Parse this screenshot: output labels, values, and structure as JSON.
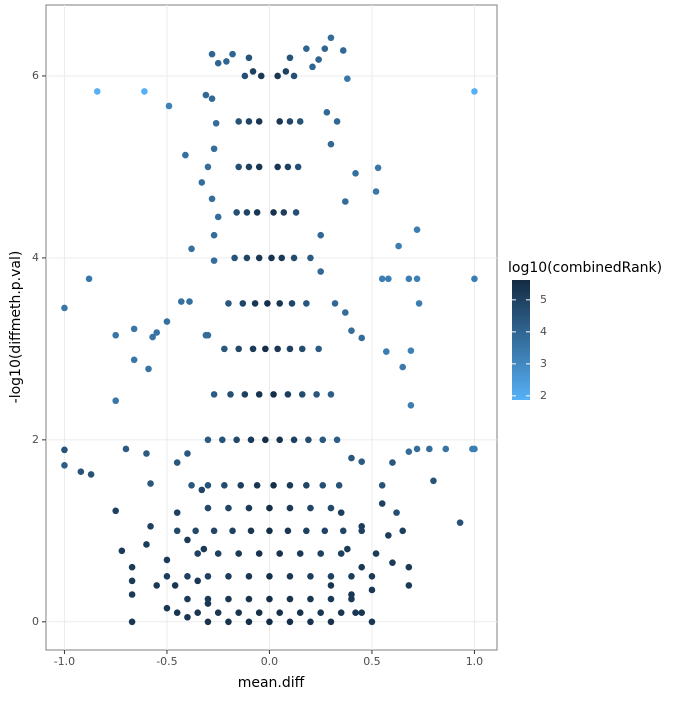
{
  "chart_data": {
    "type": "scatter",
    "x_label": "mean.diff",
    "y_label": "-log10(diffmeth.p.val)",
    "legend_title": "log10(combinedRank)",
    "xlim": [
      -1.09,
      1.11
    ],
    "ylim": [
      -0.31,
      6.78
    ],
    "xticks": [
      {
        "value": -1,
        "label": "-1.0"
      },
      {
        "value": -0.5,
        "label": "-0.5"
      },
      {
        "value": 0,
        "label": "0.0"
      },
      {
        "value": 0.5,
        "label": "0.5"
      },
      {
        "value": 1,
        "label": "1.0"
      }
    ],
    "yticks": [
      0,
      2,
      4,
      6
    ],
    "grid": true,
    "clim": [
      1.87,
      5.62
    ],
    "cticks": [
      2,
      3,
      4,
      5
    ],
    "color_low": "#56B1F7",
    "color_high": "#132B43",
    "x": [
      -0.84,
      -0.61,
      1.0,
      -0.49,
      -1.0,
      -0.88,
      1.0,
      0.55,
      0.58,
      0.68,
      0.72,
      0.73,
      0.63,
      0.72,
      0.53,
      0.52,
      0.38,
      0.3,
      0.27,
      0.69,
      0.57,
      0.65,
      0.69,
      0.68,
      0.72,
      0.78,
      0.86,
      0.99,
      1.0,
      0.93,
      -1.0,
      -1.0,
      -0.92,
      -0.87,
      -0.75,
      -0.75,
      -0.66,
      -0.66,
      -0.59,
      -0.57,
      -0.55,
      -0.5,
      -0.43,
      -0.39,
      -0.31,
      -0.3,
      -0.38,
      -0.27,
      -0.27,
      -0.25,
      -0.28,
      -0.33,
      -0.3,
      -0.27,
      -0.41,
      -0.26,
      -0.28,
      -0.31,
      -0.25,
      -0.28,
      -0.18,
      -0.21,
      0.21,
      0.24,
      0.18,
      0.36,
      0.28,
      0.33,
      0.3,
      0.42,
      0.37,
      0.25,
      0.32,
      0.37,
      0.4,
      0.45,
      0.25,
      -0.7,
      -0.6,
      -0.58,
      -0.45,
      -0.4,
      0.4,
      0.45,
      0.55,
      0.6,
      0.8,
      0.62,
      -0.75,
      -0.72,
      -0.67,
      -0.67,
      -0.67,
      -0.67,
      -0.6,
      -0.58,
      -0.55,
      -0.5,
      -0.5,
      -0.45,
      -0.46,
      -0.4,
      -0.4,
      -0.35,
      -0.33,
      -0.32,
      -0.3,
      0.3,
      0.35,
      0.38,
      0.4,
      0.45,
      0.45,
      0.5,
      0.52,
      0.55,
      0.58,
      0.6,
      0.65,
      0.68,
      0.68,
      0.5,
      0.42,
      -0.12,
      -0.08,
      -0.04,
      0.04,
      0.08,
      0.12,
      0.1,
      -0.1,
      -0.15,
      -0.1,
      -0.05,
      0.05,
      0.1,
      0.15,
      -0.15,
      -0.1,
      -0.05,
      0.04,
      0.09,
      0.14,
      -0.16,
      -0.11,
      -0.06,
      0.02,
      0.07,
      0.13,
      -0.17,
      -0.11,
      -0.05,
      0.01,
      0.06,
      0.12,
      0.2,
      -0.2,
      -0.13,
      -0.07,
      -0.01,
      0.05,
      0.11,
      0.18,
      -0.22,
      -0.15,
      -0.08,
      -0.02,
      0.04,
      0.1,
      0.16,
      0.24,
      -0.27,
      -0.19,
      -0.12,
      -0.05,
      0.02,
      0.09,
      0.16,
      0.23,
      0.3,
      -0.3,
      -0.23,
      -0.16,
      -0.09,
      -0.02,
      0.05,
      0.12,
      0.19,
      0.26,
      0.33,
      -0.38,
      -0.3,
      -0.22,
      -0.14,
      -0.06,
      0.02,
      0.1,
      0.18,
      0.26,
      0.34,
      -0.3,
      -0.2,
      -0.1,
      0,
      0.1,
      0.2,
      0.3,
      -0.45,
      -0.36,
      -0.27,
      -0.18,
      -0.09,
      0.0,
      0.09,
      0.18,
      0.27,
      0.36,
      0.45,
      -0.35,
      -0.25,
      -0.15,
      -0.05,
      0.05,
      0.15,
      0.25,
      0.35,
      -0.5,
      -0.4,
      -0.3,
      -0.2,
      -0.1,
      0.0,
      0.1,
      0.2,
      0.3,
      0.4,
      0.5,
      -0.4,
      -0.3,
      -0.2,
      -0.1,
      0,
      0.1,
      0.2,
      0.3,
      0.4,
      -0.45,
      -0.35,
      -0.25,
      -0.15,
      -0.05,
      0.05,
      0.15,
      0.25,
      0.35,
      0.45,
      -0.3,
      -0.2,
      -0.1,
      0,
      0.1,
      0.2,
      0.3
    ],
    "values": [
      5.83,
      5.83,
      5.83,
      5.67,
      3.45,
      3.77,
      3.77,
      3.77,
      3.77,
      3.77,
      3.77,
      3.5,
      4.13,
      4.31,
      4.99,
      4.73,
      5.97,
      6.42,
      6.3,
      2.98,
      2.97,
      2.8,
      2.38,
      1.87,
      1.9,
      1.9,
      1.9,
      1.9,
      1.9,
      1.09,
      1.89,
      1.72,
      1.65,
      1.62,
      2.43,
      3.15,
      3.22,
      2.88,
      2.78,
      3.13,
      3.18,
      3.3,
      3.52,
      3.52,
      3.15,
      3.15,
      4.1,
      4.25,
      3.97,
      4.45,
      4.65,
      4.83,
      5.0,
      5.2,
      5.13,
      5.48,
      5.75,
      5.79,
      6.14,
      6.24,
      6.24,
      6.16,
      6.1,
      6.18,
      6.3,
      6.28,
      5.6,
      5.5,
      5.25,
      4.93,
      4.62,
      4.25,
      3.5,
      3.4,
      3.2,
      3.12,
      3.85,
      1.9,
      1.85,
      1.52,
      1.75,
      1.85,
      1.8,
      1.76,
      1.5,
      1.75,
      1.55,
      1.2,
      1.22,
      0.78,
      0.6,
      0.45,
      0.3,
      0.0,
      0.85,
      1.05,
      0.4,
      0.15,
      0.68,
      1.2,
      0.4,
      0.9,
      0.05,
      0.45,
      1.45,
      0.8,
      0.2,
      0.4,
      1.2,
      0.8,
      0.3,
      1.05,
      0.6,
      0.0,
      0.75,
      1.3,
      0.95,
      0.65,
      1.0,
      0.6,
      0.4,
      0.35,
      0.1,
      6.0,
      6.05,
      6.0,
      6.0,
      6.05,
      6.0,
      6.2,
      6.2,
      5.5,
      5.5,
      5.5,
      5.5,
      5.5,
      5.5,
      5.0,
      5.0,
      5.0,
      5.0,
      5.0,
      5.0,
      4.5,
      4.5,
      4.5,
      4.5,
      4.5,
      4.5,
      4.0,
      4.0,
      4.0,
      4.0,
      4.0,
      4.0,
      4.0,
      3.5,
      3.5,
      3.5,
      3.5,
      3.5,
      3.5,
      3.5,
      3.0,
      3.0,
      3.0,
      3.0,
      3.0,
      3.0,
      3.0,
      3.0,
      2.5,
      2.5,
      2.5,
      2.5,
      2.5,
      2.5,
      2.5,
      2.5,
      2.5,
      2.0,
      2.0,
      2.0,
      2.0,
      2.0,
      2.0,
      2.0,
      2.0,
      2.0,
      2.0,
      1.5,
      1.5,
      1.5,
      1.5,
      1.5,
      1.5,
      1.5,
      1.5,
      1.5,
      1.5,
      1.25,
      1.25,
      1.25,
      1.25,
      1.25,
      1.25,
      1.25,
      1.0,
      1.0,
      1.0,
      1.0,
      1.0,
      1.0,
      1.0,
      1.0,
      1.0,
      1.0,
      1.0,
      0.75,
      0.75,
      0.75,
      0.75,
      0.75,
      0.75,
      0.75,
      0.75,
      0.5,
      0.5,
      0.5,
      0.5,
      0.5,
      0.5,
      0.5,
      0.5,
      0.5,
      0.5,
      0.5,
      0.25,
      0.25,
      0.25,
      0.25,
      0.25,
      0.25,
      0.25,
      0.25,
      0.25,
      0.1,
      0.1,
      0.1,
      0.1,
      0.1,
      0.1,
      0.1,
      0.1,
      0.1,
      0.1,
      0,
      0,
      0,
      0,
      0,
      0,
      0
    ],
    "color_values": [
      1.9,
      1.9,
      1.9,
      3.2,
      3.5,
      3.5,
      3.3,
      3.3,
      3.3,
      3.3,
      3.2,
      3.3,
      3.3,
      3.3,
      3.5,
      3.5,
      3.5,
      3.8,
      4.0,
      3.2,
      3.3,
      3.4,
      3.3,
      3.8,
      3.8,
      3.8,
      3.6,
      3.3,
      3.3,
      4.5,
      4.5,
      4.2,
      4.5,
      4.5,
      3.5,
      3.5,
      3.5,
      3.5,
      3.6,
      3.6,
      3.6,
      3.7,
      3.7,
      3.7,
      3.8,
      3.8,
      3.7,
      3.8,
      3.8,
      3.8,
      3.8,
      3.8,
      3.8,
      3.8,
      3.7,
      3.8,
      3.9,
      3.9,
      4,
      4,
      4,
      4,
      4,
      4,
      4,
      3.9,
      3.9,
      3.9,
      3.9,
      3.7,
      3.8,
      3.9,
      3.9,
      3.8,
      3.8,
      3.8,
      3.9,
      4.3,
      4.3,
      4.4,
      4.4,
      4.4,
      4.4,
      4.3,
      4.5,
      4.4,
      4.5,
      4.6,
      5,
      5.2,
      5.2,
      5.2,
      5.2,
      5.3,
      5.1,
      5,
      5.2,
      5.3,
      5.2,
      5,
      5.3,
      5.2,
      5.3,
      5.3,
      4.9,
      5.2,
      5.3,
      5.3,
      5.1,
      5.2,
      5.3,
      5.1,
      5.2,
      5.3,
      5.2,
      5,
      5.1,
      5.2,
      5.1,
      5.2,
      5.2,
      5.3,
      5.3,
      4.6,
      5,
      5.3,
      5.3,
      5,
      4.6,
      4.5,
      4.5,
      4.5,
      4.9,
      5.3,
      5.3,
      4.9,
      4.5,
      4.6,
      5,
      5.3,
      5.3,
      5,
      4.6,
      4.6,
      4.9,
      5.3,
      5.4,
      5.1,
      4.6,
      4.5,
      4.9,
      5.3,
      5.4,
      5.2,
      4.7,
      4.3,
      4.4,
      4.9,
      5.3,
      5.5,
      5.3,
      4.9,
      4.4,
      4.4,
      4.8,
      5.2,
      5.5,
      5.3,
      5,
      4.7,
      4.3,
      4.3,
      4.6,
      5,
      5.4,
      5.5,
      5.1,
      4.7,
      4.4,
      4.2,
      4.3,
      4.5,
      4.8,
      5.2,
      5.5,
      5.4,
      5,
      4.7,
      4.4,
      4.2,
      4.4,
      4.5,
      4.7,
      5,
      5.3,
      5.5,
      5.2,
      4.9,
      4.6,
      4.5,
      4.8,
      4.9,
      5.2,
      5.5,
      5.2,
      4.9,
      4.8,
      4.8,
      4.8,
      4.9,
      5,
      5.3,
      5.5,
      5.3,
      5,
      4.9,
      4.9,
      5,
      5,
      5,
      5.2,
      5.4,
      5.4,
      5.2,
      5,
      5,
      5.1,
      5,
      5,
      5.1,
      5.3,
      5.5,
      5.3,
      5.1,
      5,
      5.1,
      5.2,
      5.2,
      5.2,
      5.3,
      5.4,
      5.5,
      5.4,
      5.3,
      5.2,
      5.2,
      5.3,
      5.3,
      5.3,
      5.4,
      5.5,
      5.5,
      5.4,
      5.3,
      5.3,
      5.3,
      5.4,
      5.4,
      5.5,
      5.6,
      5.5,
      5.4,
      5.4
    ]
  }
}
